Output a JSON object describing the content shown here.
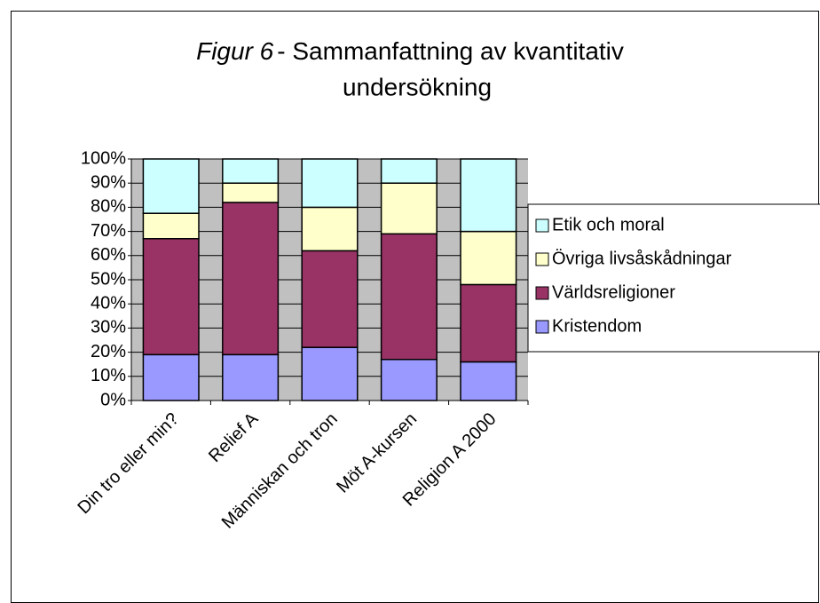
{
  "chart_data": {
    "type": "stacked_bar",
    "title": [
      "Figur 6",
      "- Sammanfattning av kvantitativ",
      "undersökning"
    ],
    "categories": [
      "Din tro eller min?",
      "Relief A",
      "Människan och tron",
      "Möt A-kursen",
      "Religion A 2000"
    ],
    "series": [
      {
        "name": "Kristendom",
        "color": "#9999ff",
        "values": [
          19,
          19,
          22,
          17,
          16
        ]
      },
      {
        "name": "Världsreligioner",
        "color": "#993366",
        "values": [
          48,
          63,
          40,
          52,
          32
        ]
      },
      {
        "name": "Övriga livsåskådningar",
        "color": "#ffffcc",
        "values": [
          10.5,
          8,
          18,
          21,
          22
        ]
      },
      {
        "name": "Etik och moral",
        "color": "#ccffff",
        "values": [
          22.5,
          10,
          20,
          10,
          30
        ]
      }
    ],
    "ylim": [
      0,
      100
    ],
    "yticks": [
      {
        "value": 0,
        "label": "0%"
      },
      {
        "value": 10,
        "label": "10%"
      },
      {
        "value": 20,
        "label": "20%"
      },
      {
        "value": 30,
        "label": "30%"
      },
      {
        "value": 40,
        "label": "40%"
      },
      {
        "value": 50,
        "label": "50%"
      },
      {
        "value": 60,
        "label": "60%"
      },
      {
        "value": 70,
        "label": "70%"
      },
      {
        "value": 80,
        "label": "80%"
      },
      {
        "value": 90,
        "label": "90%"
      },
      {
        "value": 100,
        "label": "100%"
      }
    ],
    "grid": true,
    "legend": "right"
  }
}
